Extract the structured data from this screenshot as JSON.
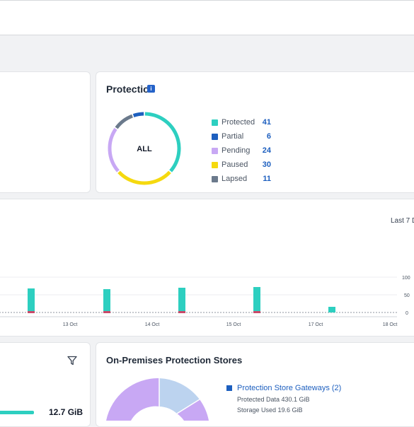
{
  "protection": {
    "title": "Protection",
    "info_icon": "i",
    "center_label": "ALL",
    "items": [
      {
        "label": "Protected",
        "value": "41",
        "color": "#2dcfc0"
      },
      {
        "label": "Partial",
        "value": "6",
        "color": "#1d5fbf"
      },
      {
        "label": "Pending",
        "value": "24",
        "color": "#c8a8f4"
      },
      {
        "label": "Paused",
        "value": "30",
        "color": "#f5d90f"
      },
      {
        "label": "Lapsed",
        "value": "11",
        "color": "#6b7a8c"
      }
    ]
  },
  "activity": {
    "range_label": "Last 7 D",
    "y_ticks": [
      "100",
      "50",
      "0"
    ],
    "x_ticks": [
      "13 Oct",
      "14 Oct",
      "15 Oct",
      "17 Oct",
      "18 Oct"
    ],
    "bar_color": "#2dcfc0",
    "bar_base_color": "#c94a6a"
  },
  "left_bottom": {
    "filter_icon": "filter-icon",
    "value_text": "12.7 GiB"
  },
  "on_prem": {
    "title": "On-Premises Protection Stores",
    "legend_label": "Protection Store Gateways (2)",
    "legend_color": "#1d5fbf",
    "protected_data": "Protected Data 430.1 GiB",
    "storage_used": "Storage Used 19.6 GiB"
  }
}
